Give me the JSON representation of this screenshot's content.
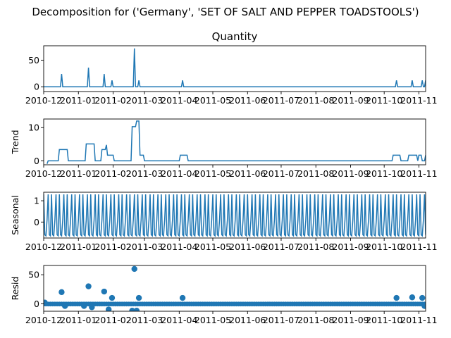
{
  "figure": {
    "suptitle": "Decomposition for ('Germany', 'SET OF SALT AND PEPPER TOADSTOOLS')"
  },
  "colors": {
    "line": "#1f77b4",
    "marker": "#1f77b4",
    "axis": "#000000",
    "background": "#ffffff"
  },
  "chart_data": [
    {
      "type": "line",
      "title": "Quantity",
      "ylabel": "",
      "xlim": [
        "2010-12-01",
        "2011-11-07"
      ],
      "ylim": [
        -9,
        77
      ],
      "yticks": [
        0,
        50
      ],
      "xtick_labels": [
        "2010-12",
        "2011-01",
        "2011-02",
        "2011-03",
        "2011-04",
        "2011-05",
        "2011-06",
        "2011-07",
        "2011-08",
        "2011-09",
        "2011-10",
        "2011-11"
      ],
      "baseline": 0,
      "spikes": [
        {
          "x": "2010-12-17",
          "y": 24
        },
        {
          "x": "2011-01-10",
          "y": 36
        },
        {
          "x": "2011-01-24",
          "y": 24
        },
        {
          "x": "2011-01-31",
          "y": 12
        },
        {
          "x": "2011-02-20",
          "y": 72
        },
        {
          "x": "2011-02-24",
          "y": 12
        },
        {
          "x": "2011-04-04",
          "y": 12
        },
        {
          "x": "2011-10-12",
          "y": 12
        },
        {
          "x": "2011-10-26",
          "y": 12
        },
        {
          "x": "2011-11-04",
          "y": 12
        },
        {
          "x": "2011-11-07",
          "y": 12
        }
      ]
    },
    {
      "type": "line",
      "title": "",
      "ylabel": "Trend",
      "xlim": [
        "2010-12-01",
        "2011-11-07"
      ],
      "ylim": [
        -1.2,
        12.6
      ],
      "yticks": [
        0,
        10
      ],
      "xtick_labels": [
        "2010-12",
        "2011-01",
        "2011-02",
        "2011-03",
        "2011-04",
        "2011-05",
        "2011-06",
        "2011-07",
        "2011-08",
        "2011-09",
        "2011-10",
        "2011-11"
      ],
      "points": [
        {
          "x": "2010-12-04",
          "y": -0.9
        },
        {
          "x": "2010-12-05",
          "y": 0
        },
        {
          "x": "2010-12-14",
          "y": 0
        },
        {
          "x": "2010-12-15",
          "y": 3.4
        },
        {
          "x": "2010-12-22",
          "y": 3.4
        },
        {
          "x": "2010-12-23",
          "y": 0
        },
        {
          "x": "2011-01-07",
          "y": 0
        },
        {
          "x": "2011-01-08",
          "y": 5.1
        },
        {
          "x": "2011-01-15",
          "y": 5.1
        },
        {
          "x": "2011-01-16",
          "y": 0
        },
        {
          "x": "2011-01-21",
          "y": 0
        },
        {
          "x": "2011-01-22",
          "y": 3.4
        },
        {
          "x": "2011-01-25",
          "y": 3.4
        },
        {
          "x": "2011-01-26",
          "y": 4.8
        },
        {
          "x": "2011-01-27",
          "y": 1.7
        },
        {
          "x": "2011-02-01",
          "y": 1.7
        },
        {
          "x": "2011-02-02",
          "y": 0
        },
        {
          "x": "2011-02-17",
          "y": 0
        },
        {
          "x": "2011-02-18",
          "y": 10.3
        },
        {
          "x": "2011-02-21",
          "y": 10.3
        },
        {
          "x": "2011-02-22",
          "y": 12
        },
        {
          "x": "2011-02-24",
          "y": 12
        },
        {
          "x": "2011-02-25",
          "y": 1.7
        },
        {
          "x": "2011-02-28",
          "y": 1.7
        },
        {
          "x": "2011-03-01",
          "y": 0
        },
        {
          "x": "2011-04-01",
          "y": 0
        },
        {
          "x": "2011-04-02",
          "y": 1.7
        },
        {
          "x": "2011-04-08",
          "y": 1.7
        },
        {
          "x": "2011-04-09",
          "y": 0
        },
        {
          "x": "2011-10-08",
          "y": 0
        },
        {
          "x": "2011-10-09",
          "y": 1.7
        },
        {
          "x": "2011-10-15",
          "y": 1.7
        },
        {
          "x": "2011-10-16",
          "y": 0
        },
        {
          "x": "2011-10-22",
          "y": 0
        },
        {
          "x": "2011-10-23",
          "y": 1.7
        },
        {
          "x": "2011-10-30",
          "y": 1.7
        },
        {
          "x": "2011-10-31",
          "y": 0
        },
        {
          "x": "2011-11-01",
          "y": 1.7
        },
        {
          "x": "2011-11-03",
          "y": 1.7
        },
        {
          "x": "2011-11-04",
          "y": 0
        },
        {
          "x": "2011-11-06",
          "y": 0
        },
        {
          "x": "2011-11-07",
          "y": 1.7
        }
      ]
    },
    {
      "type": "line",
      "title": "",
      "ylabel": "Seasonal",
      "xlim": [
        "2010-12-01",
        "2011-11-07"
      ],
      "ylim": [
        -0.75,
        1.4
      ],
      "yticks": [
        0,
        1
      ],
      "xtick_labels": [
        "2010-12",
        "2011-01",
        "2011-02",
        "2011-03",
        "2011-04",
        "2011-05",
        "2011-06",
        "2011-07",
        "2011-08",
        "2011-09",
        "2011-10",
        "2011-11"
      ],
      "period_days": 7,
      "weekly_pattern": [
        1.3,
        -0.6,
        -0.65,
        0.1,
        1.3,
        -0.6,
        -0.65
      ]
    },
    {
      "type": "scatter",
      "title": "",
      "ylabel": "Resid",
      "xlim": [
        "2010-12-01",
        "2011-11-07"
      ],
      "ylim": [
        -13,
        66
      ],
      "yticks": [
        0,
        50
      ],
      "xtick_labels": [
        "2010-12",
        "2011-01",
        "2011-02",
        "2011-03",
        "2011-04",
        "2011-05",
        "2011-06",
        "2011-07",
        "2011-08",
        "2011-09",
        "2011-10",
        "2011-11"
      ],
      "baseline_range": [
        "2010-12-01",
        "2011-11-07"
      ],
      "baseline_value": -0.5,
      "points": [
        {
          "x": "2010-12-02",
          "y": 2
        },
        {
          "x": "2010-12-17",
          "y": 20
        },
        {
          "x": "2010-12-20",
          "y": -4
        },
        {
          "x": "2011-01-06",
          "y": -4
        },
        {
          "x": "2011-01-10",
          "y": 30
        },
        {
          "x": "2011-01-13",
          "y": -6
        },
        {
          "x": "2011-01-24",
          "y": 21
        },
        {
          "x": "2011-01-28",
          "y": -10
        },
        {
          "x": "2011-01-31",
          "y": 10
        },
        {
          "x": "2011-02-18",
          "y": -12
        },
        {
          "x": "2011-02-20",
          "y": 60
        },
        {
          "x": "2011-02-22",
          "y": -12
        },
        {
          "x": "2011-02-24",
          "y": 10
        },
        {
          "x": "2011-04-04",
          "y": 10
        },
        {
          "x": "2011-10-12",
          "y": 10
        },
        {
          "x": "2011-10-26",
          "y": 11
        },
        {
          "x": "2011-11-04",
          "y": 10
        },
        {
          "x": "2011-11-06",
          "y": -4
        }
      ]
    }
  ]
}
